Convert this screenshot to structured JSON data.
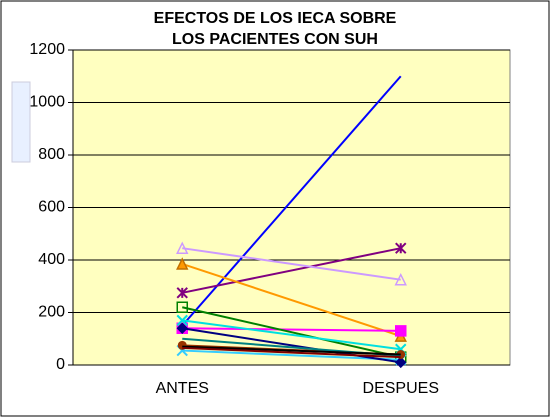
{
  "chart_data": {
    "type": "line",
    "title_lines": [
      "EFECTOS DE LOS IECA SOBRE",
      "LOS PACIENTES CON SUH"
    ],
    "categories": [
      "ANTES",
      "DESPUES"
    ],
    "ylim": [
      0,
      1200
    ],
    "yticks": [
      0,
      200,
      400,
      600,
      800,
      1000,
      1200
    ],
    "grid": true,
    "background": "#ffffc0",
    "series": [
      {
        "color": "#0000ff",
        "marker": "none",
        "values": [
          150,
          1100
        ]
      },
      {
        "color": "#800080",
        "marker": "star",
        "values": [
          275,
          445
        ]
      },
      {
        "color": "#cc99ff",
        "marker": "triangle",
        "values": [
          445,
          325
        ]
      },
      {
        "color": "#ff9900",
        "marker": "triangle",
        "values": [
          385,
          110
        ]
      },
      {
        "color": "#ff00ff",
        "marker": "square",
        "values": [
          140,
          130
        ]
      },
      {
        "color": "#008000",
        "marker": "square",
        "values": [
          220,
          30
        ]
      },
      {
        "color": "#00e0e0",
        "marker": "x",
        "values": [
          170,
          60
        ]
      },
      {
        "color": "#33ccff",
        "marker": "x",
        "values": [
          55,
          20
        ]
      },
      {
        "color": "#000080",
        "marker": "diamond",
        "values": [
          140,
          10
        ]
      },
      {
        "color": "#993300",
        "marker": "circle",
        "values": [
          75,
          40
        ]
      },
      {
        "color": "#008080",
        "marker": "none",
        "values": [
          100,
          35
        ]
      },
      {
        "color": "#000000",
        "marker": "none",
        "values": [
          70,
          40
        ]
      },
      {
        "color": "#800000",
        "marker": "none",
        "values": [
          65,
          30
        ]
      }
    ]
  }
}
